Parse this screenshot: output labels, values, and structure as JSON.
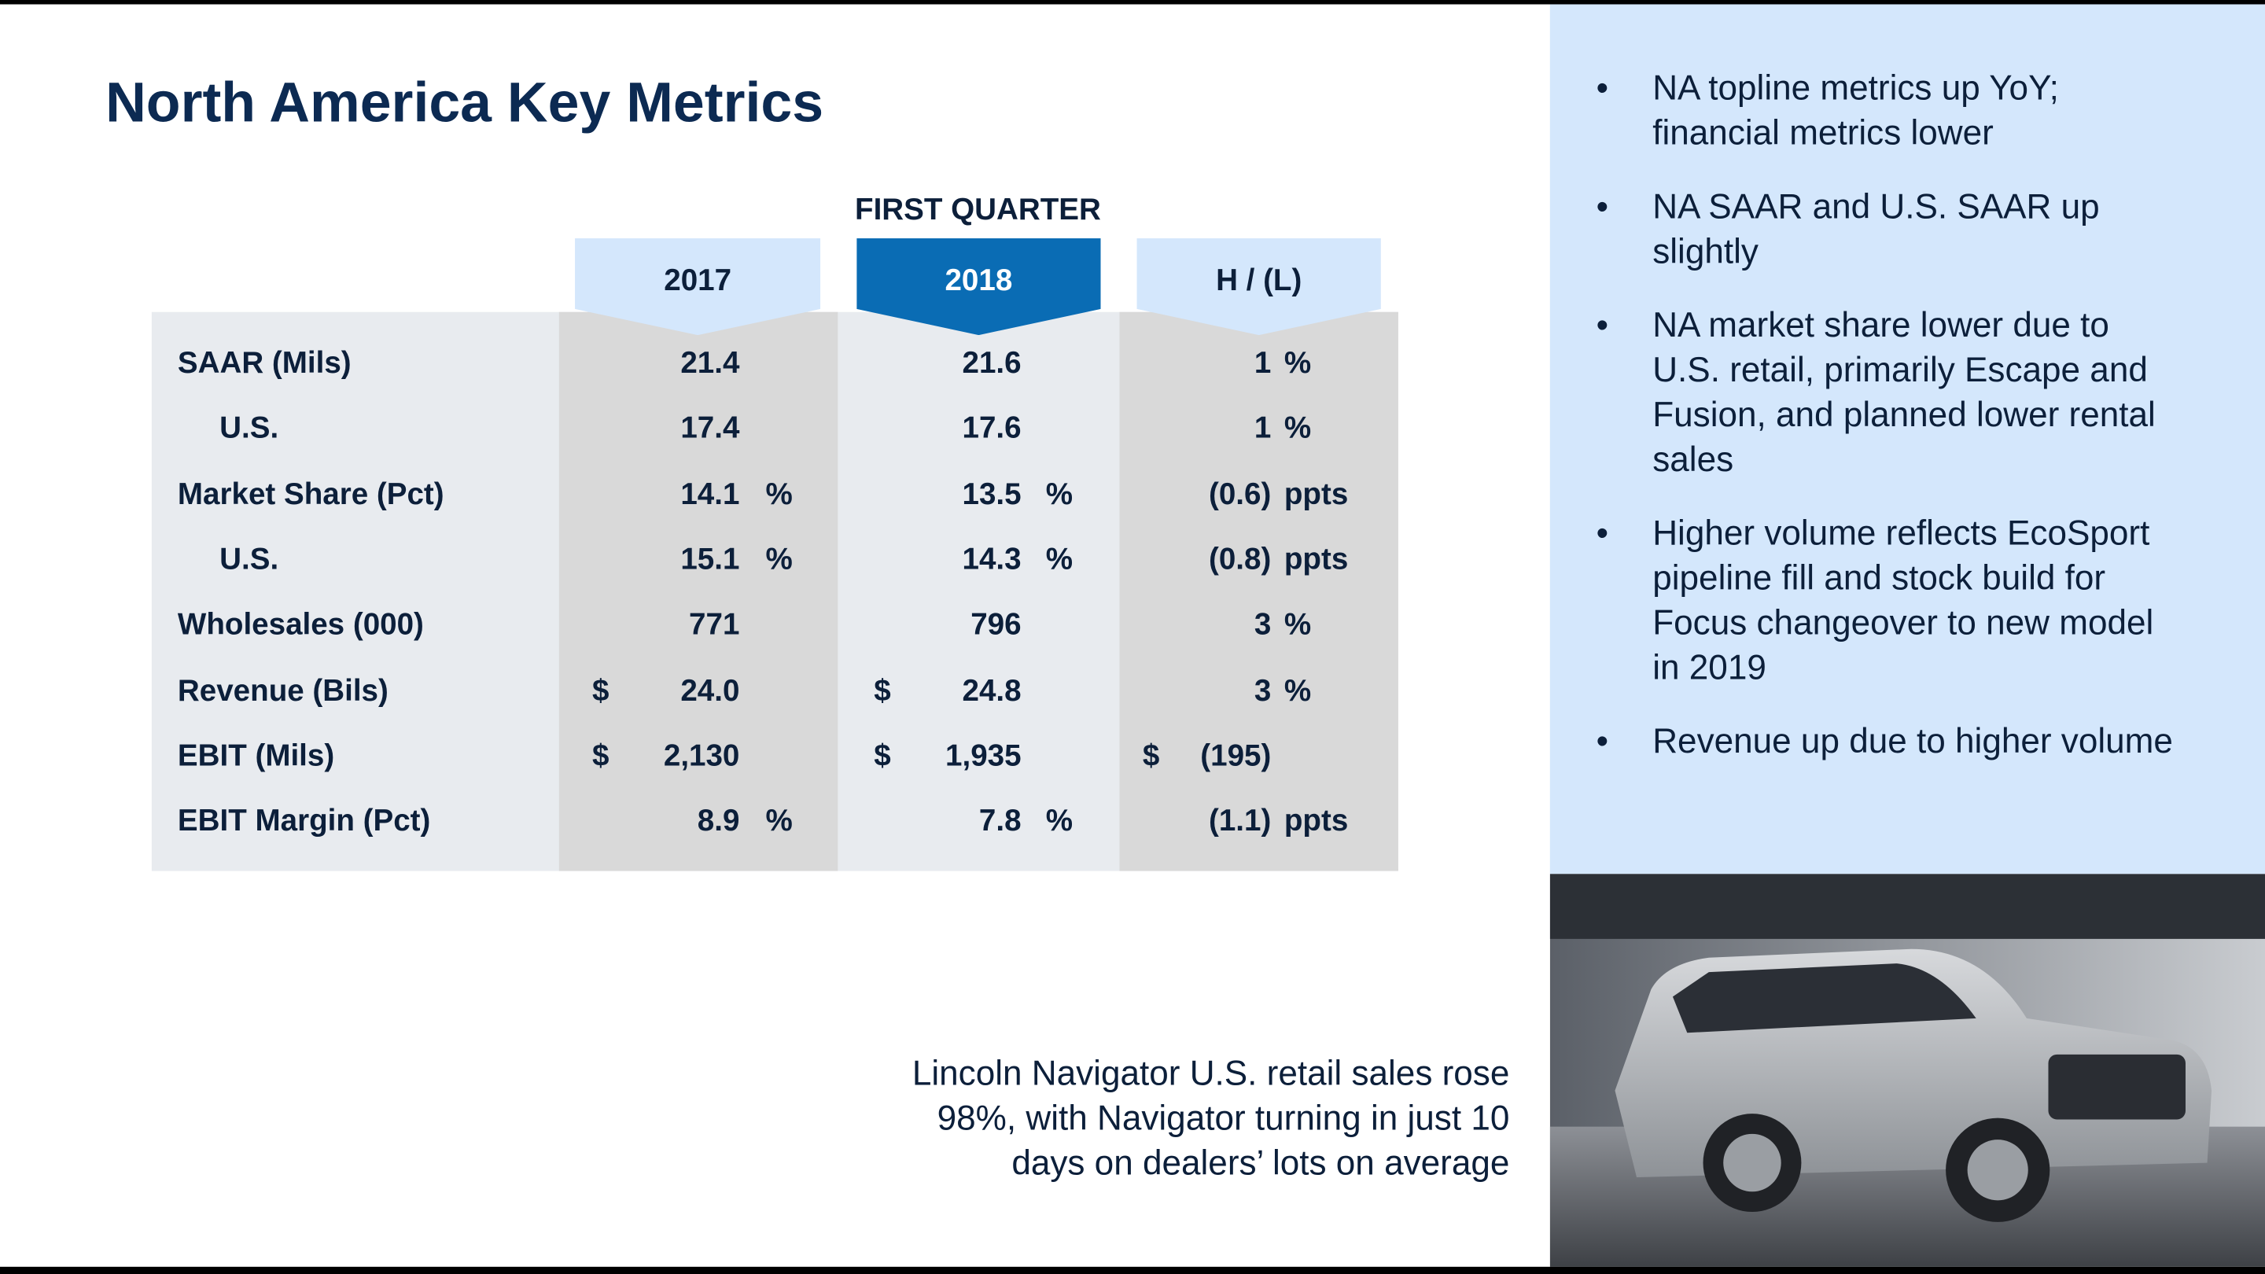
{
  "title": "North America Key Metrics",
  "table": {
    "group_header": "FIRST QUARTER",
    "columns": [
      "2017",
      "2018",
      "H / (L)"
    ],
    "rows": [
      {
        "label": "SAAR (Mils)",
        "cells": [
          {
            "value": "21.4"
          },
          {
            "value": "21.6"
          },
          {
            "value": "1",
            "suffix": "%"
          }
        ],
        "detail": {
          "label": "U.S.",
          "cells": [
            {
              "value": "17.4"
            },
            {
              "value": "17.6"
            },
            {
              "value": "1",
              "suffix": "%"
            }
          ]
        }
      },
      {
        "label": "Market Share (Pct)",
        "cells": [
          {
            "value": "14.1",
            "suffix": "%"
          },
          {
            "value": "13.5",
            "suffix": "%"
          },
          {
            "value": "(0.6)",
            "suffix": "ppts"
          }
        ],
        "detail": {
          "label": "U.S.",
          "cells": [
            {
              "value": "15.1",
              "suffix": "%"
            },
            {
              "value": "14.3",
              "suffix": "%"
            },
            {
              "value": "(0.8)",
              "suffix": "ppts"
            }
          ]
        }
      },
      {
        "label": "Wholesales (000)",
        "cells": [
          {
            "value": "771"
          },
          {
            "value": "796"
          },
          {
            "value": "3",
            "suffix": "%"
          }
        ]
      },
      {
        "label": "Revenue (Bils)",
        "cells": [
          {
            "prefix": "$",
            "value": "24.0"
          },
          {
            "prefix": "$",
            "value": "24.8"
          },
          {
            "value": "3",
            "suffix": "%"
          }
        ]
      },
      {
        "label": "EBIT (Mils)",
        "cells": [
          {
            "prefix": "$",
            "value": "2,130"
          },
          {
            "prefix": "$",
            "value": "1,935"
          },
          {
            "prefix": "$",
            "value": "(195)"
          }
        ]
      },
      {
        "label": "EBIT Margin (Pct)",
        "cells": [
          {
            "value": "8.9",
            "suffix": "%"
          },
          {
            "value": "7.8",
            "suffix": "%"
          },
          {
            "value": "(1.1)",
            "suffix": "ppts"
          }
        ]
      }
    ]
  },
  "bullets": [
    "NA topline metrics up YoY; financial metrics lower",
    "NA SAAR and U.S. SAAR up slightly",
    "NA market share lower due to U.S. retail, primarily Escape and Fusion, and planned lower rental sales",
    "Higher volume reflects EcoSport pipeline fill and stock build for Focus changeover to new model in 2019",
    "Revenue up due to higher volume"
  ],
  "caption": [
    "Lincoln Navigator U.S. retail sales rose",
    "98%, with Navigator turning in just 10",
    "days on dealers’ lots on average"
  ]
}
